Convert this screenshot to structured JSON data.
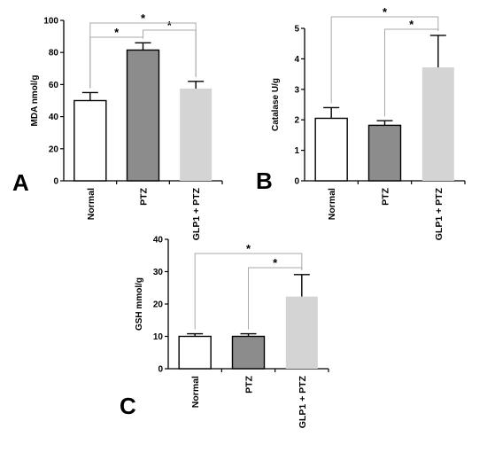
{
  "chart_data": [
    {
      "type": "bar",
      "panel_label": "A",
      "ylabel": "MDA nmol/g",
      "categories": [
        "Normal",
        "PTZ",
        "GLP1 + PTZ"
      ],
      "values": [
        50,
        81.5,
        57.5
      ],
      "errors": [
        5,
        4.5,
        4.5
      ],
      "ylim": [
        0,
        100
      ],
      "yticks": [
        "0",
        "20",
        "40",
        "60",
        "80",
        "100"
      ],
      "bar_colors": [
        "#ffffff",
        "#8c8c8c",
        "#d4d4d4"
      ],
      "significance": [
        {
          "from": 0,
          "to": 1,
          "label": "*"
        },
        {
          "from": 1,
          "to": 2,
          "label": "*"
        },
        {
          "from": 0,
          "to": 2,
          "label": "*"
        }
      ]
    },
    {
      "type": "bar",
      "panel_label": "B",
      "ylabel": "Catalase  U/g",
      "categories": [
        "Normal",
        "PTZ",
        "GLP1 + PTZ"
      ],
      "values": [
        2.05,
        1.82,
        3.72
      ],
      "errors": [
        0.35,
        0.15,
        1.05
      ],
      "ylim": [
        0,
        5
      ],
      "yticks": [
        "0",
        "1",
        "2",
        "3",
        "4",
        "5"
      ],
      "bar_colors": [
        "#ffffff",
        "#8c8c8c",
        "#d4d4d4"
      ],
      "significance": [
        {
          "from": 1,
          "to": 2,
          "label": "*"
        },
        {
          "from": 0,
          "to": 2,
          "label": "*"
        }
      ]
    },
    {
      "type": "bar",
      "panel_label": "C",
      "ylabel": "GSH mmol/g",
      "categories": [
        "Normal",
        "PTZ",
        "GLP1 + PTZ"
      ],
      "values": [
        10,
        10,
        22.3
      ],
      "errors": [
        0.8,
        0.8,
        6.8
      ],
      "ylim": [
        0,
        40
      ],
      "yticks": [
        "0",
        "10",
        "20",
        "30",
        "40"
      ],
      "bar_colors": [
        "#ffffff",
        "#8c8c8c",
        "#d4d4d4"
      ],
      "significance": [
        {
          "from": 1,
          "to": 2,
          "label": "*"
        },
        {
          "from": 0,
          "to": 2,
          "label": "*"
        }
      ]
    }
  ]
}
